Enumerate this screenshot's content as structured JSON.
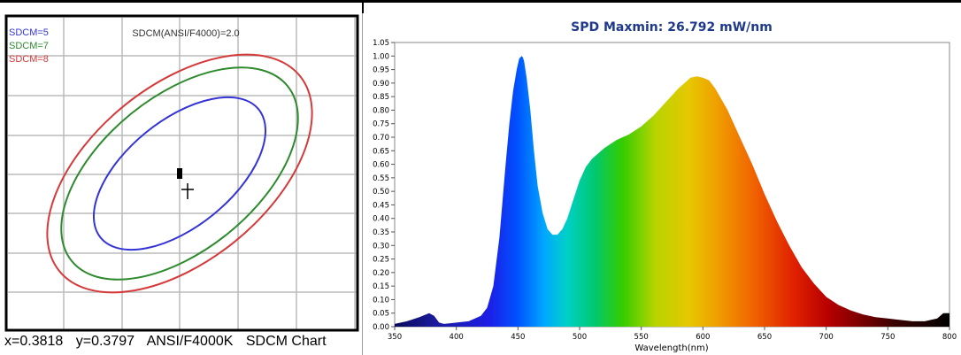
{
  "colors": {
    "sdcm5": "#3434d6",
    "sdcm7": "#2d8a2d",
    "sdcm8": "#d43a3a",
    "spd_title": "#1f3a8c"
  },
  "sdcm_panel": {
    "title": "SDCM(ANSI/F4000)=2.0",
    "legend": [
      "SDCM=5",
      "SDCM=7",
      "SDCM=8"
    ],
    "caption": {
      "x": "x=0.3818",
      "y": "y=0.3797",
      "standard": "ANSI/F4000K",
      "name": "SDCM Chart"
    }
  },
  "chart_data": {
    "type": "area",
    "title": "SPD Maxmin: 26.792 mW/nm",
    "xlabel": "Wavelength(nm)",
    "ylabel": "",
    "xlim": [
      350,
      800
    ],
    "ylim": [
      0,
      1.05
    ],
    "x_ticks": [
      "350",
      "400",
      "450",
      "500",
      "550",
      "600",
      "650",
      "700",
      "750",
      "800"
    ],
    "y_ticks": [
      "0.00",
      "0.05",
      "0.10",
      "0.15",
      "0.20",
      "0.25",
      "0.30",
      "0.35",
      "0.40",
      "0.45",
      "0.50",
      "0.55",
      "0.60",
      "0.65",
      "0.70",
      "0.75",
      "0.80",
      "0.85",
      "0.90",
      "0.95",
      "1.00",
      "1.05"
    ],
    "grid": false,
    "fill": "wavelength-colored spectrum",
    "series": [
      {
        "x": [
          350,
          360,
          370,
          378,
          382,
          386,
          390,
          400,
          410,
          420,
          425,
          430,
          435,
          440,
          443,
          446,
          449,
          451,
          453,
          454,
          455,
          457,
          460,
          463,
          466,
          470,
          474,
          478,
          482,
          486,
          490,
          495,
          500,
          505,
          510,
          520,
          530,
          540,
          550,
          560,
          570,
          580,
          590,
          595,
          600,
          605,
          610,
          620,
          630,
          640,
          650,
          660,
          670,
          680,
          690,
          700,
          710,
          720,
          730,
          740,
          750,
          760,
          770,
          780,
          790,
          795,
          800
        ],
        "y": [
          0.01,
          0.02,
          0.035,
          0.05,
          0.04,
          0.015,
          0.01,
          0.015,
          0.02,
          0.04,
          0.07,
          0.15,
          0.33,
          0.6,
          0.75,
          0.87,
          0.95,
          0.99,
          1.0,
          0.995,
          0.98,
          0.92,
          0.8,
          0.65,
          0.52,
          0.42,
          0.36,
          0.34,
          0.34,
          0.36,
          0.4,
          0.47,
          0.54,
          0.59,
          0.62,
          0.66,
          0.69,
          0.71,
          0.74,
          0.78,
          0.83,
          0.88,
          0.92,
          0.925,
          0.92,
          0.91,
          0.88,
          0.8,
          0.7,
          0.6,
          0.49,
          0.39,
          0.3,
          0.22,
          0.16,
          0.11,
          0.08,
          0.06,
          0.045,
          0.035,
          0.03,
          0.025,
          0.02,
          0.02,
          0.03,
          0.05,
          0.05
        ]
      }
    ]
  }
}
